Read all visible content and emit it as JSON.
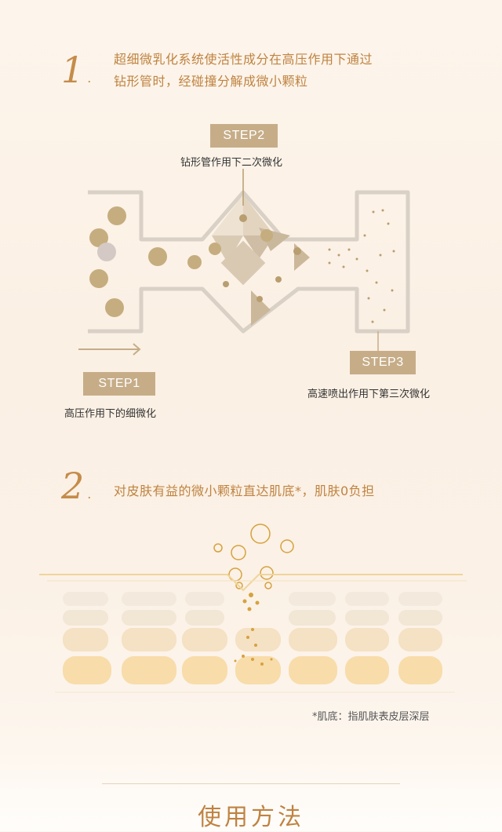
{
  "section1": {
    "number": "1",
    "line1": "超细微乳化系统使活性成分在高压作用下通过",
    "line2": "钻形管时，经碰撞分解成微小颗粒",
    "step1": {
      "badge": "STEP1",
      "caption": "高压作用下的细微化"
    },
    "step2": {
      "badge": "STEP2",
      "caption": "钻形管作用下二次微化"
    },
    "step3": {
      "badge": "STEP3",
      "caption": "高速喷出作用下第三次微化"
    }
  },
  "section2": {
    "number": "2",
    "heading": "对皮肤有益的微小颗粒直达肌底*，肌肤0负担",
    "footnote": "*肌底：指肌肤表皮层深层"
  },
  "bottom": {
    "title": "使用方法"
  },
  "colors": {
    "accent": "#bf8341",
    "badge": "#c6ad88",
    "particle": "#c5ad7f",
    "skin_cell": "#f6dcae"
  }
}
